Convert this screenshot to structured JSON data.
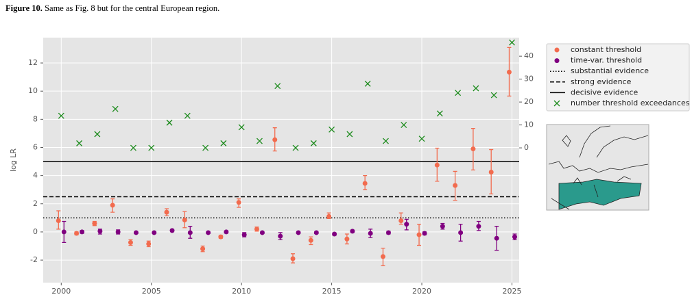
{
  "caption": {
    "label": "Figure 10.",
    "text": "Same as Fig. 8 but for the central European region."
  },
  "chart_data": {
    "type": "scatter",
    "ylabel": "log LR",
    "x": [
      2000,
      2001,
      2002,
      2003,
      2004,
      2005,
      2006,
      2007,
      2008,
      2009,
      2010,
      2011,
      2012,
      2013,
      2014,
      2015,
      2016,
      2017,
      2018,
      2019,
      2020,
      2021,
      2022,
      2023,
      2024,
      2025
    ],
    "xlim": [
      1999.0,
      2025.4
    ],
    "xticks": [
      2000,
      2005,
      2010,
      2015,
      2020,
      2025
    ],
    "ylim": [
      -3.6,
      13.8
    ],
    "yticks": [
      -2,
      0,
      2,
      4,
      6,
      8,
      10,
      12
    ],
    "y2lim": [
      -58.8,
      48.1
    ],
    "y2ticks": [
      0,
      10,
      20,
      30,
      40
    ],
    "grid": true,
    "series": [
      {
        "name": "constant threshold",
        "color": "#f26b4e",
        "marker": "o",
        "values": [
          0.8,
          -0.1,
          0.6,
          1.9,
          -0.75,
          -0.85,
          1.4,
          0.85,
          -1.2,
          -0.35,
          2.1,
          0.2,
          6.55,
          -1.9,
          -0.6,
          1.1,
          -0.5,
          3.45,
          -1.75,
          0.8,
          -0.2,
          4.75,
          3.3,
          5.9,
          4.25,
          11.35
        ],
        "lower": [
          0.2,
          -0.2,
          0.45,
          1.4,
          -0.95,
          -1.05,
          1.15,
          0.3,
          -1.4,
          -0.45,
          1.75,
          0.05,
          5.75,
          -2.2,
          -0.9,
          0.95,
          -0.85,
          3.0,
          -2.4,
          0.55,
          -0.95,
          3.6,
          2.25,
          4.4,
          2.7,
          9.65
        ],
        "upper": [
          1.5,
          0.0,
          0.75,
          2.35,
          -0.55,
          -0.65,
          1.65,
          1.45,
          -1.0,
          -0.25,
          2.35,
          0.35,
          7.4,
          -1.55,
          -0.35,
          1.35,
          -0.15,
          4.0,
          -1.15,
          1.35,
          0.55,
          5.95,
          4.3,
          7.35,
          5.85,
          13.1
        ]
      },
      {
        "name": "time-var. threshold",
        "color": "#800080",
        "marker": "o",
        "values": [
          0.0,
          0.0,
          0.05,
          0.0,
          -0.05,
          -0.05,
          0.1,
          -0.05,
          -0.05,
          0.0,
          -0.2,
          -0.05,
          -0.3,
          -0.05,
          -0.05,
          -0.15,
          0.05,
          -0.1,
          -0.05,
          0.55,
          -0.1,
          0.4,
          -0.05,
          0.4,
          -0.45,
          -0.35
        ],
        "lower": [
          -0.75,
          -0.1,
          -0.15,
          -0.15,
          -0.12,
          -0.12,
          0.02,
          -0.45,
          -0.12,
          -0.08,
          -0.35,
          -0.12,
          -0.55,
          -0.12,
          -0.12,
          -0.23,
          -0.03,
          -0.4,
          -0.15,
          0.15,
          -0.2,
          0.2,
          -0.65,
          0.1,
          -1.3,
          -0.55
        ],
        "upper": [
          0.75,
          0.1,
          0.2,
          0.15,
          0.02,
          0.02,
          0.18,
          0.4,
          0.02,
          0.08,
          -0.05,
          0.02,
          -0.05,
          0.02,
          0.02,
          -0.07,
          0.13,
          0.2,
          0.05,
          0.9,
          0.0,
          0.6,
          0.55,
          0.75,
          0.4,
          -0.15
        ]
      },
      {
        "name": "number threshold exceedances",
        "color": "#1a8a1a",
        "marker": "x",
        "axis": "y2",
        "values": [
          14,
          2,
          6,
          17,
          0,
          0,
          11,
          14,
          0,
          2,
          9,
          3,
          27,
          0,
          2,
          8,
          6,
          28,
          3,
          10,
          4,
          15,
          24,
          26,
          23,
          46
        ]
      }
    ],
    "hlines": [
      {
        "name": "substantial evidence",
        "value": 1,
        "style": "dotted"
      },
      {
        "name": "strong evidence",
        "value": 2.5,
        "style": "dashed"
      },
      {
        "name": "decisive evidence",
        "value": 5,
        "style": "solid"
      }
    ]
  }
}
